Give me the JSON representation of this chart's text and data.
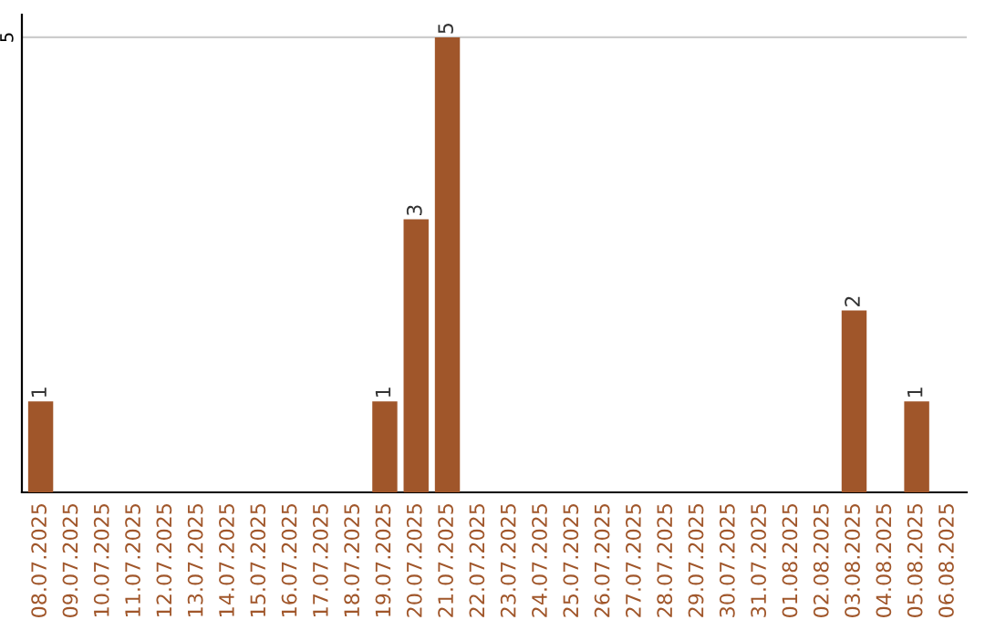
{
  "chart_data": {
    "type": "bar",
    "categories": [
      "08.07.2025",
      "09.07.2025",
      "10.07.2025",
      "11.07.2025",
      "12.07.2025",
      "13.07.2025",
      "14.07.2025",
      "15.07.2025",
      "16.07.2025",
      "17.07.2025",
      "18.07.2025",
      "19.07.2025",
      "20.07.2025",
      "21.07.2025",
      "22.07.2025",
      "23.07.2025",
      "24.07.2025",
      "25.07.2025",
      "26.07.2025",
      "27.07.2025",
      "28.07.2025",
      "29.07.2025",
      "30.07.2025",
      "31.07.2025",
      "01.08.2025",
      "02.08.2025",
      "03.08.2025",
      "04.08.2025",
      "05.08.2025",
      "06.08.2025"
    ],
    "values": [
      1,
      0,
      0,
      0,
      0,
      0,
      0,
      0,
      0,
      0,
      0,
      1,
      3,
      5,
      0,
      0,
      0,
      0,
      0,
      0,
      0,
      0,
      0,
      0,
      0,
      0,
      2,
      0,
      1,
      0
    ],
    "value_labels": [
      "1",
      null,
      null,
      null,
      null,
      null,
      null,
      null,
      null,
      null,
      null,
      "1",
      "3",
      "5",
      null,
      null,
      null,
      null,
      null,
      null,
      null,
      null,
      null,
      null,
      null,
      null,
      "2",
      null,
      "1",
      null
    ],
    "color": "#a0562a",
    "ylim": [
      0,
      5.25
    ],
    "yticks": [
      5
    ],
    "grid": "y"
  }
}
